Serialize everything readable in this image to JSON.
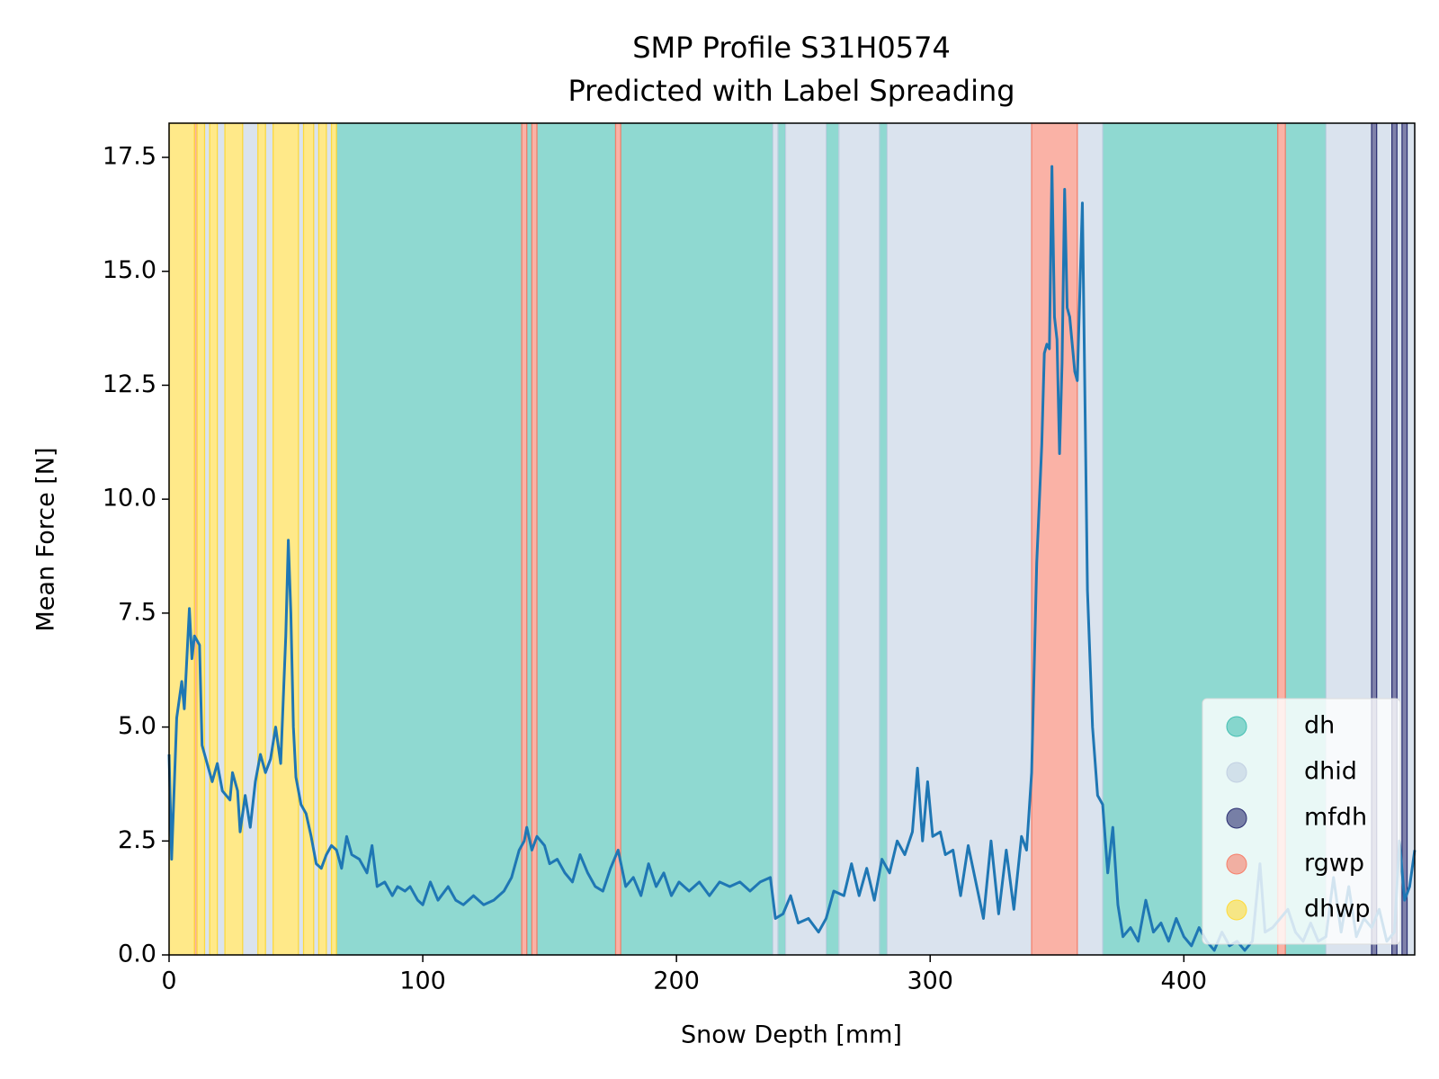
{
  "chart_data": {
    "type": "line",
    "title": "SMP Profile S31H0574",
    "subtitle": "Predicted with Label Spreading",
    "x_label": "Snow Depth [mm]",
    "y_label": "Mean Force [N]",
    "xlim": [
      0,
      491
    ],
    "ylim": [
      0,
      18.25
    ],
    "xticks": [
      0,
      100,
      200,
      300,
      400
    ],
    "yticks": [
      {
        "value": 0,
        "label": "0.0"
      },
      2.5,
      {
        "value": 5,
        "label": "5.0"
      },
      7.5,
      {
        "value": 10,
        "label": "10.0"
      },
      12.5,
      {
        "value": 15,
        "label": "15.0"
      },
      17.5
    ],
    "grid": false,
    "legend": "lower right",
    "layer_alpha": 0.6,
    "layers": [
      {
        "name": "dh",
        "color": "#45bfb2",
        "spans": [
          [
            66,
            139
          ],
          [
            141,
            143
          ],
          [
            145,
            176
          ],
          [
            178,
            238
          ],
          [
            240,
            243
          ],
          [
            259,
            264
          ],
          [
            280,
            283
          ],
          [
            368,
            437
          ],
          [
            440,
            456
          ]
        ]
      },
      {
        "name": "dhid",
        "color": "#c2d0e2",
        "spans": [
          [
            14,
            16
          ],
          [
            19,
            22
          ],
          [
            29,
            35
          ],
          [
            38,
            41
          ],
          [
            51,
            53
          ],
          [
            57,
            59
          ],
          [
            62,
            64
          ],
          [
            238,
            240
          ],
          [
            243,
            259
          ],
          [
            264,
            280
          ],
          [
            283,
            340
          ],
          [
            358,
            368
          ],
          [
            456,
            474
          ],
          [
            476,
            482
          ],
          [
            484,
            486
          ],
          [
            488,
            491
          ]
        ]
      },
      {
        "name": "mfdh",
        "color": "#2b2f72",
        "spans": [
          [
            474,
            476
          ],
          [
            482,
            484
          ],
          [
            486,
            488
          ]
        ]
      },
      {
        "name": "rgwp",
        "color": "#f77f6a",
        "spans": [
          [
            10,
            11
          ],
          [
            139,
            141
          ],
          [
            143,
            145
          ],
          [
            176,
            178
          ],
          [
            340,
            358
          ],
          [
            437,
            440
          ]
        ]
      },
      {
        "name": "dhwp",
        "color": "#ffda3a",
        "spans": [
          [
            0,
            10
          ],
          [
            11,
            14
          ],
          [
            16,
            19
          ],
          [
            22,
            29
          ],
          [
            35,
            38
          ],
          [
            41,
            51
          ],
          [
            53,
            57
          ],
          [
            59,
            62
          ],
          [
            64,
            66
          ]
        ]
      }
    ],
    "x": [
      0,
      1,
      3,
      5,
      6,
      8,
      9,
      10,
      12,
      13,
      15,
      17,
      19,
      21,
      24,
      25,
      27,
      28,
      30,
      32,
      34,
      36,
      38,
      40,
      42,
      44,
      46,
      47,
      48,
      49,
      50,
      52,
      54,
      56,
      58,
      60,
      62,
      64,
      66,
      68,
      70,
      72,
      75,
      78,
      80,
      82,
      85,
      88,
      90,
      93,
      95,
      98,
      100,
      103,
      106,
      110,
      113,
      116,
      120,
      124,
      128,
      132,
      135,
      138,
      140,
      141,
      143,
      145,
      148,
      150,
      153,
      156,
      159,
      162,
      165,
      168,
      171,
      174,
      177,
      180,
      183,
      186,
      189,
      192,
      195,
      198,
      201,
      205,
      209,
      213,
      217,
      221,
      225,
      229,
      233,
      237,
      239,
      242,
      245,
      248,
      252,
      256,
      259,
      262,
      266,
      269,
      272,
      275,
      278,
      281,
      284,
      287,
      290,
      293,
      295,
      297,
      299,
      301,
      304,
      306,
      309,
      312,
      315,
      318,
      321,
      324,
      327,
      330,
      333,
      336,
      338,
      340,
      342,
      344,
      345,
      346,
      347,
      348,
      349,
      350,
      351,
      352,
      353,
      354,
      355,
      357,
      358,
      360,
      362,
      364,
      366,
      368,
      370,
      372,
      374,
      376,
      379,
      382,
      385,
      388,
      391,
      394,
      397,
      400,
      403,
      406,
      409,
      412,
      415,
      418,
      421,
      424,
      427,
      430,
      432,
      435,
      438,
      441,
      444,
      447,
      450,
      453,
      456,
      459,
      462,
      465,
      468,
      471,
      474,
      477,
      480,
      483,
      485,
      487,
      489,
      491
    ],
    "series": [
      {
        "name": "Mean Force",
        "color": "#1f77b4",
        "values": [
          4.4,
          2.1,
          5.2,
          6.0,
          5.4,
          7.6,
          6.5,
          7.0,
          6.8,
          4.6,
          4.2,
          3.8,
          4.2,
          3.6,
          3.4,
          4.0,
          3.6,
          2.7,
          3.5,
          2.8,
          3.8,
          4.4,
          4.0,
          4.3,
          5.0,
          4.2,
          7.0,
          9.1,
          7.5,
          5.0,
          3.9,
          3.3,
          3.1,
          2.6,
          2.0,
          1.9,
          2.2,
          2.4,
          2.3,
          1.9,
          2.6,
          2.2,
          2.1,
          1.8,
          2.4,
          1.5,
          1.6,
          1.3,
          1.5,
          1.4,
          1.5,
          1.2,
          1.1,
          1.6,
          1.2,
          1.5,
          1.2,
          1.1,
          1.3,
          1.1,
          1.2,
          1.4,
          1.7,
          2.3,
          2.5,
          2.8,
          2.3,
          2.6,
          2.4,
          2.0,
          2.1,
          1.8,
          1.6,
          2.2,
          1.8,
          1.5,
          1.4,
          1.9,
          2.3,
          1.5,
          1.7,
          1.3,
          2.0,
          1.5,
          1.8,
          1.3,
          1.6,
          1.4,
          1.6,
          1.3,
          1.6,
          1.5,
          1.6,
          1.4,
          1.6,
          1.7,
          0.8,
          0.9,
          1.3,
          0.7,
          0.8,
          0.5,
          0.8,
          1.4,
          1.3,
          2.0,
          1.3,
          1.9,
          1.2,
          2.1,
          1.8,
          2.5,
          2.2,
          2.7,
          4.1,
          2.5,
          3.8,
          2.6,
          2.7,
          2.2,
          2.3,
          1.3,
          2.4,
          1.6,
          0.8,
          2.5,
          0.9,
          2.3,
          1.0,
          2.6,
          2.3,
          4.0,
          8.6,
          11.2,
          13.2,
          13.4,
          13.3,
          17.3,
          14.0,
          13.5,
          11.0,
          13.0,
          16.8,
          14.2,
          14.0,
          12.8,
          12.6,
          16.5,
          8.0,
          5.0,
          3.5,
          3.3,
          1.8,
          2.8,
          1.1,
          0.4,
          0.6,
          0.3,
          1.2,
          0.5,
          0.7,
          0.3,
          0.8,
          0.4,
          0.2,
          0.6,
          0.3,
          0.1,
          0.5,
          0.2,
          0.3,
          0.1,
          0.3,
          2.0,
          0.5,
          0.6,
          0.8,
          1.0,
          0.5,
          0.3,
          0.7,
          0.3,
          0.4,
          1.7,
          0.5,
          1.5,
          0.4,
          0.8,
          0.6,
          1.0,
          0.3,
          0.5,
          2.5,
          1.2,
          1.5,
          2.3
        ]
      }
    ]
  }
}
